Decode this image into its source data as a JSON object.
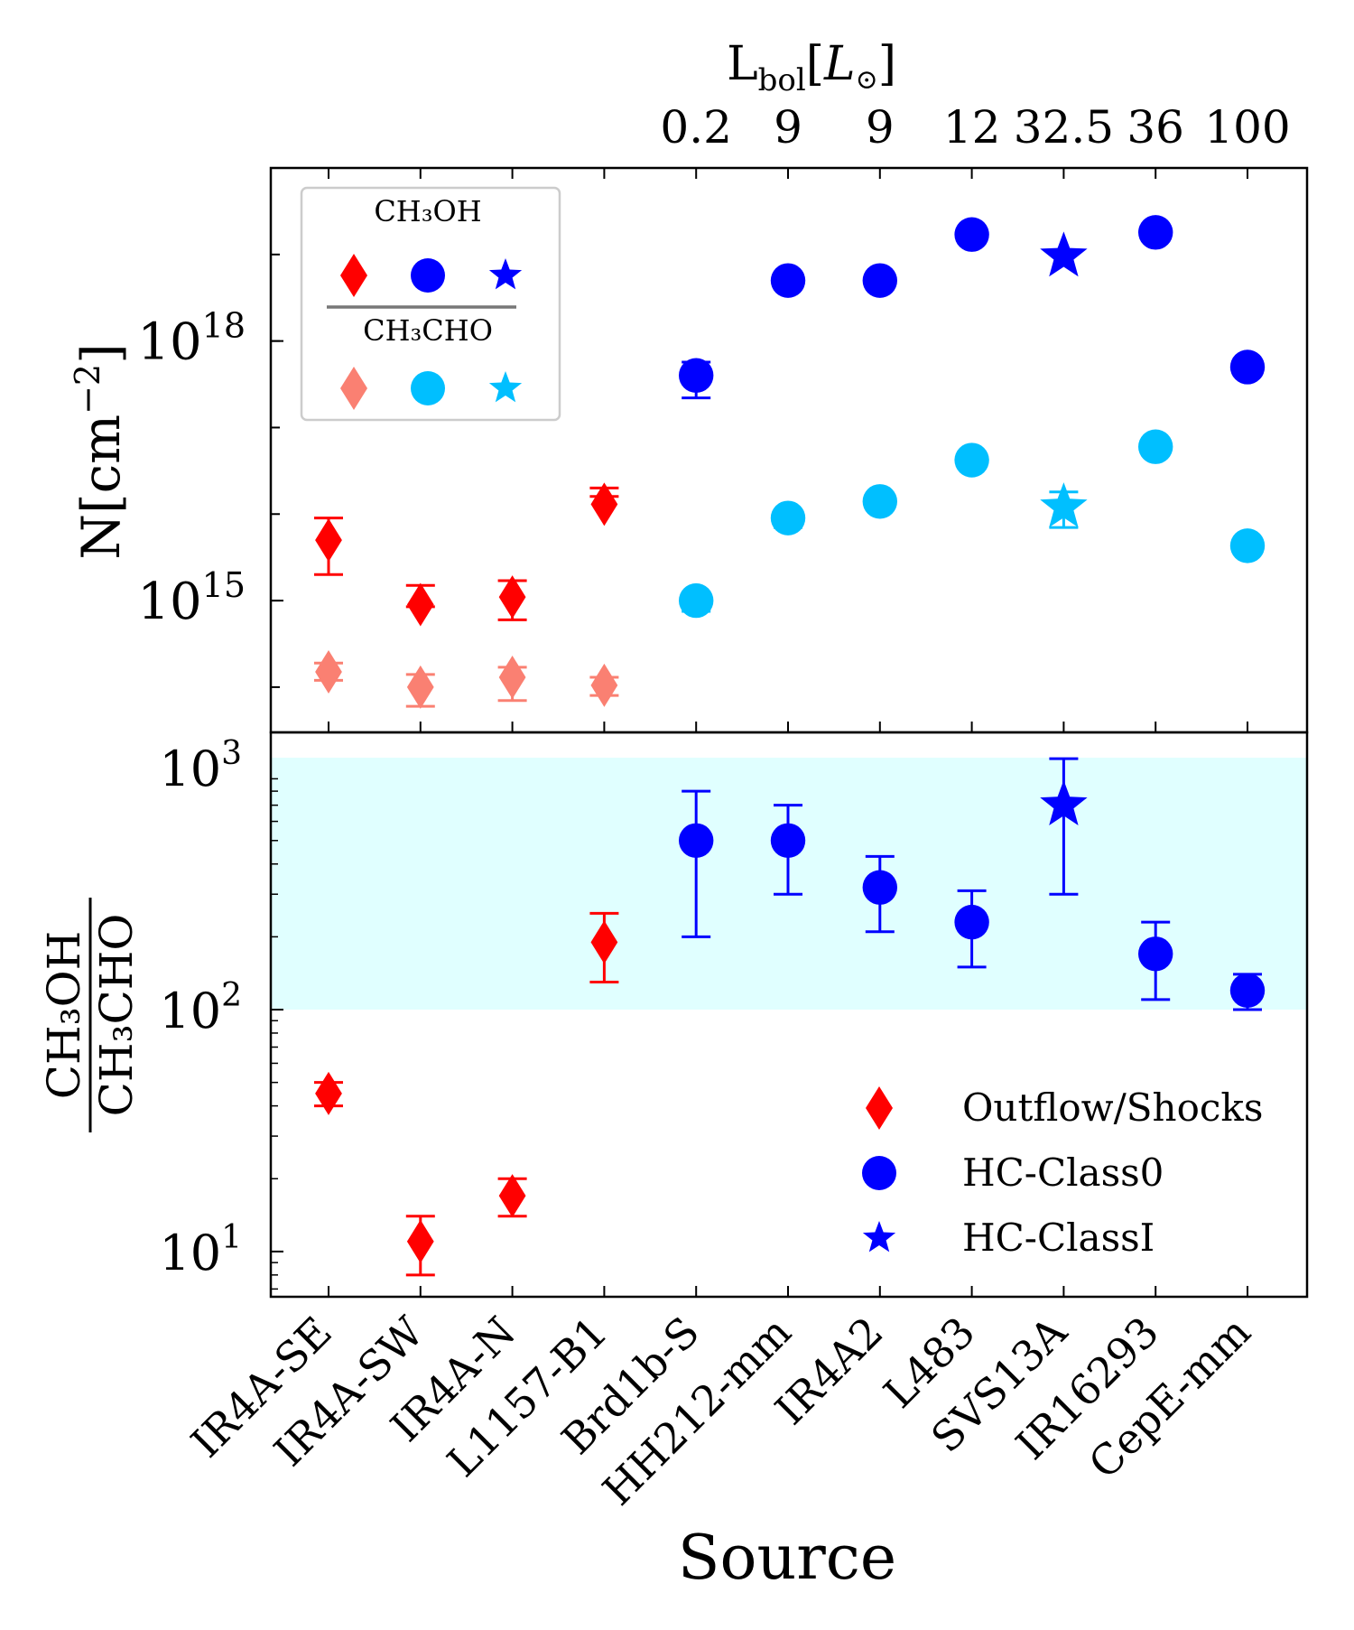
{
  "top_axis": {
    "label_main": "L",
    "label_sub": "bol",
    "label_unit_open": "[",
    "label_unit": "L",
    "label_unit_sub": "⊙",
    "label_unit_close": "]",
    "ticks": [
      "0.2",
      "9",
      "9",
      "12",
      "32.5",
      "36",
      "100"
    ]
  },
  "legend_top": {
    "title_ch3oh": "CH₃OH",
    "title_ch3cho": "CH₃CHO"
  },
  "legend_bottom": {
    "items": [
      "Outflow/Shocks",
      "HC-Class0",
      "HC-ClassI"
    ]
  },
  "colors": {
    "shock_ch3oh": "#ff0000",
    "shock_ch3cho": "#fa8072",
    "hc_ch3oh": "#0000ff",
    "hc_ch3cho": "#00bfff",
    "band": "#e0ffff"
  },
  "chart_data": [
    {
      "type": "scatter",
      "panel": "top",
      "ylabel": "N[cm⁻²]",
      "yscale": "log",
      "ylim": [
        30000000000000.0,
        1e+20
      ],
      "yticks": [
        {
          "value": 1000000000000000.0,
          "label_base": "10",
          "label_exp": "15"
        },
        {
          "value": 1e+18,
          "label_base": "10",
          "label_exp": "18"
        }
      ],
      "categories": [
        "IR4A-SE",
        "IR4A-SW",
        "IR4A-N",
        "L1157-B1",
        "Brd1b-S",
        "HH212-mm",
        "IR4A2",
        "L483",
        "SVS13A",
        "IR16293",
        "CepE-mm"
      ],
      "marker_types": [
        "diamond",
        "diamond",
        "diamond",
        "diamond",
        "circle",
        "circle",
        "circle",
        "circle",
        "star",
        "circle",
        "circle"
      ],
      "series": [
        {
          "name": "CH₃OH",
          "values": [
            5000000000000000.0,
            900000000000000.0,
            1100000000000000.0,
            1.3e+16,
            4e+17,
            5e+18,
            5e+18,
            1.7e+19,
            9.5e+18,
            1.8e+19,
            5e+17
          ],
          "err_low": [
            2000000000000000.0,
            850000000000000.0,
            600000000000000.0,
            2e+16,
            2.2e+17,
            5.4e+18,
            5.4e+18,
            1.86e+19,
            1.02e+19,
            1.97e+19,
            5.4e+17
          ],
          "err_high": [
            9000000000000000.0,
            1500000000000000.0,
            1700000000000000.0,
            1.6e+16,
            5.7e+17,
            5.8e+18,
            5.8e+18,
            2e+19,
            1.02e+19,
            2.08e+19,
            5.9e+17
          ]
        },
        {
          "name": "CH₃CHO",
          "values": [
            150000000000000.0,
            100000000000000.0,
            130000000000000.0,
            105000000000000.0,
            1000000000000000.0,
            9000000000000000.0,
            1.4e+16,
            4.2e+16,
            1.2e+16,
            6e+16,
            4300000000000000.0
          ],
          "err_low": [
            120000000000000.0,
            60000000000000.0,
            70000000000000.0,
            80000000000000.0,
            750000000000000.0,
            7000000000000000.0,
            1.2e+16,
            3.8e+16,
            7000000000000000.0,
            5.4e+16,
            4000000000000000.0
          ],
          "err_high": [
            190000000000000.0,
            140000000000000.0,
            170000000000000.0,
            130000000000000.0,
            1200000000000000.0,
            1.05e+16,
            1.6e+16,
            4.7e+16,
            1.8e+16,
            6.6e+16,
            4900000000000000.0
          ]
        }
      ]
    },
    {
      "type": "scatter",
      "panel": "bottom",
      "ylabel_num": "CH₃OH",
      "ylabel_den": "CH₃CHO",
      "xlabel": "Source",
      "yscale": "log",
      "ylim": [
        6.5,
        1400
      ],
      "yticks": [
        {
          "value": 10,
          "label_base": "10",
          "label_exp": "1"
        },
        {
          "value": 100,
          "label_base": "10",
          "label_exp": "2"
        },
        {
          "value": 1000,
          "label_base": "10",
          "label_exp": "3"
        }
      ],
      "band": [
        100,
        1100
      ],
      "categories": [
        "IR4A-SE",
        "IR4A-SW",
        "IR4A-N",
        "L1157-B1",
        "Brd1b-S",
        "HH212-mm",
        "IR4A2",
        "L483",
        "SVS13A",
        "IR16293",
        "CepE-mm"
      ],
      "marker_types": [
        "diamond",
        "diamond",
        "diamond",
        "diamond",
        "circle",
        "circle",
        "circle",
        "circle",
        "star",
        "circle",
        "circle"
      ],
      "series": [
        {
          "name": "CH₃OH/CH₃CHO",
          "values": [
            45,
            11,
            17,
            190,
            500,
            500,
            320,
            230,
            700,
            170,
            120
          ],
          "err_low": [
            40,
            8,
            14,
            130,
            200,
            300,
            210,
            150,
            300,
            110,
            100
          ],
          "err_high": [
            50,
            14,
            20,
            250,
            800,
            700,
            430,
            310,
            1090,
            230,
            140
          ]
        }
      ]
    }
  ]
}
